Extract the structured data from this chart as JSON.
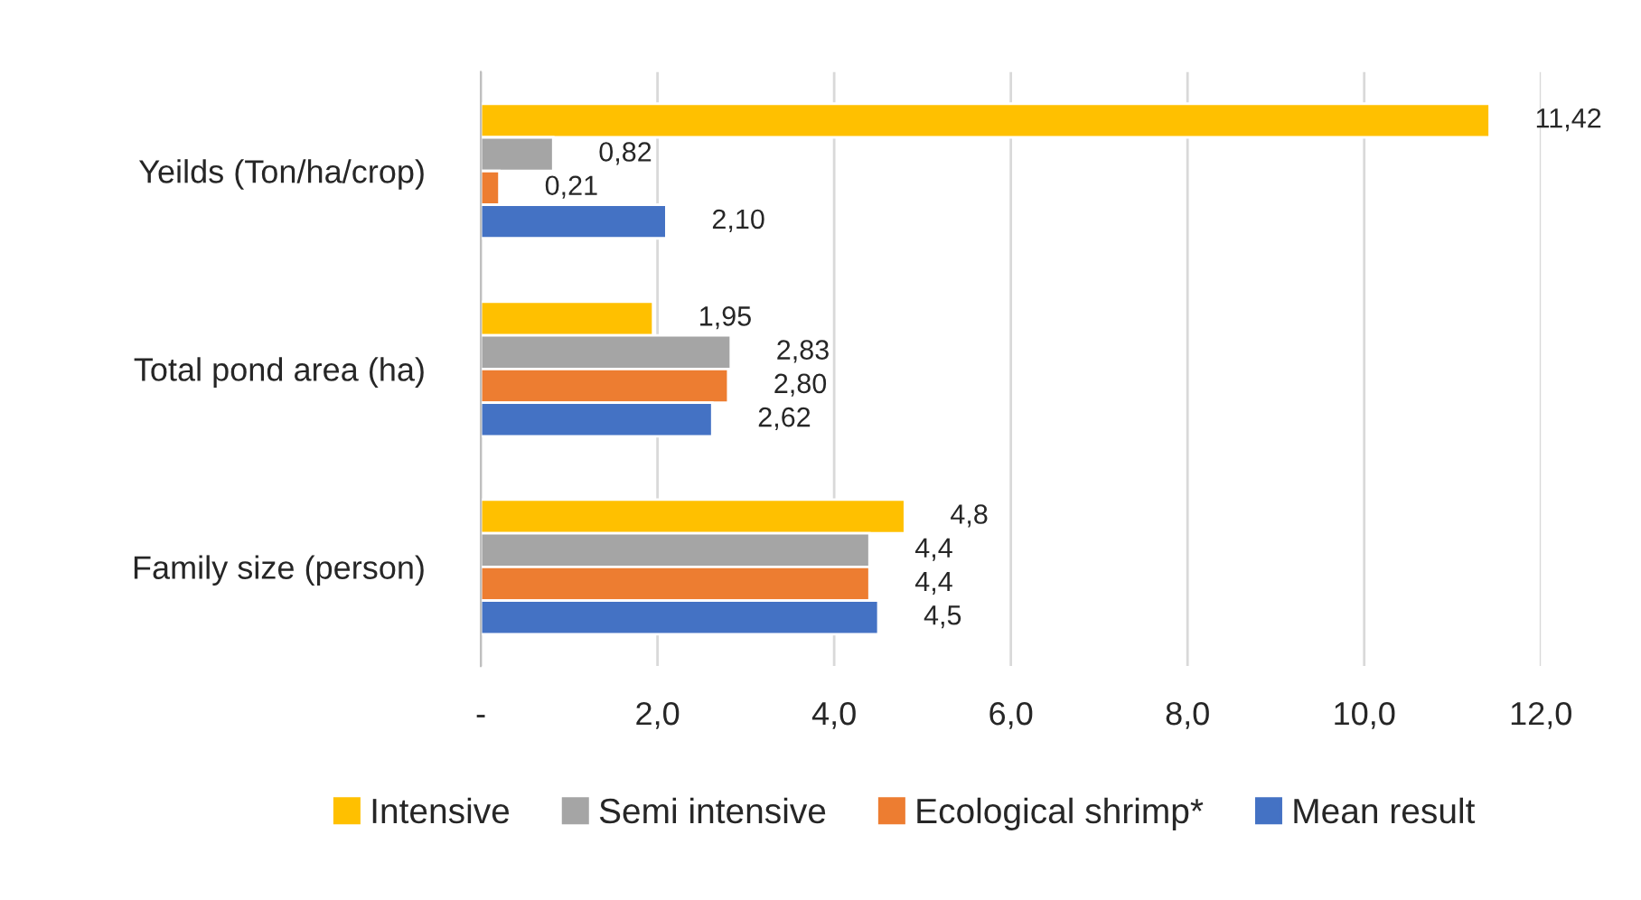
{
  "chart_data": {
    "type": "bar",
    "orientation": "horizontal",
    "categories": [
      "Yeilds (Ton/ha/crop)",
      "Total pond area (ha)",
      "Family size (person)"
    ],
    "series": [
      {
        "name": "Intensive",
        "color": "#ffc000",
        "values": [
          11.42,
          1.95,
          4.8
        ],
        "value_labels": [
          "11,42",
          "1,95",
          "4,8"
        ]
      },
      {
        "name": "Semi intensive",
        "color": "#a5a5a5",
        "values": [
          0.82,
          2.83,
          4.4
        ],
        "value_labels": [
          "0,82",
          "2,83",
          "4,4"
        ]
      },
      {
        "name": "Ecological shrimp*",
        "color": "#ed7d31",
        "values": [
          0.21,
          2.8,
          4.4
        ],
        "value_labels": [
          "0,21",
          "2,80",
          "4,4"
        ]
      },
      {
        "name": "Mean result",
        "color": "#4472c4",
        "values": [
          2.1,
          2.62,
          4.5
        ],
        "value_labels": [
          "2,10",
          "2,62",
          "4,5"
        ]
      }
    ],
    "xlim": [
      0,
      12
    ],
    "xticks": [
      {
        "value": 0,
        "label": "-"
      },
      {
        "value": 2,
        "label": "2,0"
      },
      {
        "value": 4,
        "label": "4,0"
      },
      {
        "value": 6,
        "label": "6,0"
      },
      {
        "value": 8,
        "label": "8,0"
      },
      {
        "value": 10,
        "label": "10,0"
      },
      {
        "value": 12,
        "label": "12,0"
      }
    ],
    "grid": "x",
    "legend": "bottom"
  }
}
